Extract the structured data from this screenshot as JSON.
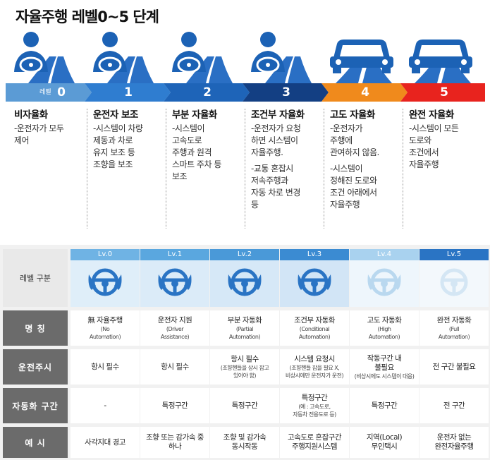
{
  "title": "자율주행 레벨0~5 단계",
  "band": {
    "word": "레벨",
    "levels": [
      "0",
      "1",
      "2",
      "3",
      "4",
      "5"
    ],
    "colors": [
      "#5b9bd5",
      "#2f7dd0",
      "#1e64b8",
      "#133f83",
      "#f08a1c",
      "#e8231e"
    ]
  },
  "columns": [
    {
      "title": "비자율화",
      "desc": [
        "-운전자가 모두\n제어"
      ]
    },
    {
      "title": "운전자 보조",
      "desc": [
        "-시스템이 차량\n제동과 차로\n유지 보조 등\n조향을 보조"
      ]
    },
    {
      "title": "부분 자율화",
      "desc": [
        "-시스템이\n고속도로\n주행과 원격\n스마트 주차 등\n보조"
      ]
    },
    {
      "title": "조건부 자율화",
      "desc": [
        "-운전자가 요청\n하면 시스템이\n자율주행.",
        "-교통 혼잡시\n저속주행과\n자동 차로 변경\n등"
      ]
    },
    {
      "title": "고도 자율화",
      "desc": [
        "-운전자가\n주행에\n관여하지 않음.",
        "-시스템이\n정해진 도로와\n조건 아래에서\n자율주행"
      ]
    },
    {
      "title": "완전 자율화",
      "desc": [
        "-시스템이 모든\n도로와\n조건에서\n자율주행"
      ]
    }
  ],
  "table": {
    "header_label": "레벨 구분",
    "levels": [
      "Lv.0",
      "Lv.1",
      "Lv.2",
      "Lv.3",
      "Lv.4",
      "Lv.5"
    ],
    "level_colors": [
      "#6fb3e4",
      "#5aa7df",
      "#4a99d8",
      "#3b8bd2",
      "#a9d2ef",
      "#2a74c4"
    ],
    "rows": [
      {
        "label": "명  칭",
        "cells": [
          {
            "main": "無 자율주행",
            "sub": "(No\nAutomation)"
          },
          {
            "main": "운전자 지원",
            "sub": "(Driver\nAssistance)"
          },
          {
            "main": "부분 자동화",
            "sub": "(Partial\nAutomation)"
          },
          {
            "main": "조건부 자동화",
            "sub": "(Conditional\nAutomation)"
          },
          {
            "main": "고도 자동화",
            "sub": "(High\nAutomation)"
          },
          {
            "main": "완전 자동화",
            "sub": "(Full\nAutomation)"
          }
        ]
      },
      {
        "label": "운전주시",
        "cells": [
          {
            "main": "항시 필수",
            "sub": ""
          },
          {
            "main": "항시 필수",
            "sub": ""
          },
          {
            "main": "항시 필수",
            "sub": "(조향핸들을 상시 잡고\n있어야 함)"
          },
          {
            "main": "시스템 요청시",
            "sub": "(조향핸들 잡을 필요 X,\n비상시에만 운전자가 운전)"
          },
          {
            "main": "작동구간 내\n불필요",
            "sub": "(비상시에도 시스템이 대응)"
          },
          {
            "main": "전 구간 불필요",
            "sub": ""
          }
        ]
      },
      {
        "label": "자동화 구간",
        "cells": [
          {
            "main": "-",
            "sub": ""
          },
          {
            "main": "특정구간",
            "sub": ""
          },
          {
            "main": "특정구간",
            "sub": ""
          },
          {
            "main": "특정구간",
            "sub": "(예 : 고속도로,\n자동차 전용도로 등)"
          },
          {
            "main": "특정구간",
            "sub": ""
          },
          {
            "main": "전 구간",
            "sub": ""
          }
        ]
      },
      {
        "label": "예  시",
        "cells": [
          {
            "main": "사각지대 경고",
            "sub": ""
          },
          {
            "main": "조향 또는 감가속 중\n하나",
            "sub": ""
          },
          {
            "main": "조향 및 감가속\n동시작동",
            "sub": ""
          },
          {
            "main": "고속도로 혼잡구간\n주행지원시스템",
            "sub": ""
          },
          {
            "main": "지역(Local)\n무인택시",
            "sub": ""
          },
          {
            "main": "운전자 없는\n완전자율주행",
            "sub": ""
          }
        ]
      }
    ]
  }
}
